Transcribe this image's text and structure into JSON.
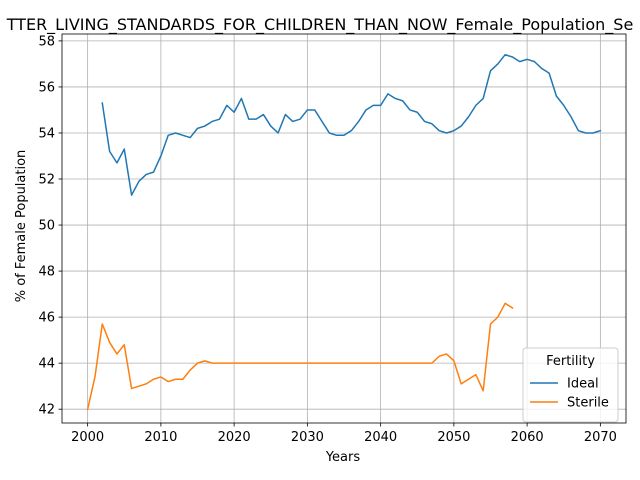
{
  "chart_data": {
    "type": "line",
    "title": "TTER_LIVING_STANDARDS_FOR_CHILDREN_THAN_NOW_Female_Population_Se",
    "xlabel": "Years",
    "ylabel": "% of Female Population",
    "xlim": [
      1996.5,
      2073.5
    ],
    "ylim": [
      41.4,
      58.3
    ],
    "xticks": [
      2000,
      2010,
      2020,
      2030,
      2040,
      2050,
      2060,
      2070
    ],
    "yticks": [
      42,
      44,
      46,
      48,
      50,
      52,
      54,
      56,
      58
    ],
    "grid": true,
    "legend": {
      "title": "Fertility",
      "position": "bottom-right"
    },
    "series": [
      {
        "name": "Ideal",
        "color": "#1f77b4",
        "x": [
          2002,
          2003,
          2004,
          2005,
          2006,
          2007,
          2008,
          2009,
          2010,
          2011,
          2012,
          2013,
          2014,
          2015,
          2016,
          2017,
          2018,
          2019,
          2020,
          2021,
          2022,
          2023,
          2024,
          2025,
          2026,
          2027,
          2028,
          2029,
          2030,
          2031,
          2032,
          2033,
          2034,
          2035,
          2036,
          2037,
          2038,
          2039,
          2040,
          2041,
          2042,
          2043,
          2044,
          2045,
          2046,
          2047,
          2048,
          2049,
          2050,
          2051,
          2052,
          2053,
          2054,
          2055,
          2056,
          2057,
          2058,
          2059,
          2060,
          2061,
          2062,
          2063,
          2064,
          2065,
          2066,
          2067,
          2068,
          2069,
          2070
        ],
        "y": [
          55.3,
          53.2,
          52.7,
          53.3,
          51.3,
          51.9,
          52.2,
          52.3,
          53.0,
          53.9,
          54.0,
          53.9,
          53.8,
          54.2,
          54.3,
          54.5,
          54.6,
          55.2,
          54.9,
          55.5,
          54.6,
          54.6,
          54.8,
          54.3,
          54.0,
          54.8,
          54.5,
          54.6,
          55.0,
          55.0,
          54.5,
          54.0,
          53.9,
          53.9,
          54.1,
          54.5,
          55.0,
          55.2,
          55.2,
          55.7,
          55.5,
          55.4,
          55.0,
          54.9,
          54.5,
          54.4,
          54.1,
          54.0,
          54.1,
          54.3,
          54.7,
          55.2,
          55.5,
          56.7,
          57.0,
          57.4,
          57.3,
          57.1,
          57.2,
          57.1,
          56.8,
          56.6,
          55.6,
          55.2,
          54.7,
          54.1,
          54.0,
          54.0,
          54.1
        ]
      },
      {
        "name": "Sterile",
        "color": "#ff7f0e",
        "x": [
          2000,
          2001,
          2002,
          2003,
          2004,
          2005,
          2006,
          2007,
          2008,
          2009,
          2010,
          2011,
          2012,
          2013,
          2014,
          2015,
          2016,
          2017,
          2018,
          2019,
          2020,
          2021,
          2022,
          2023,
          2024,
          2025,
          2026,
          2027,
          2028,
          2029,
          2030,
          2031,
          2032,
          2033,
          2034,
          2035,
          2036,
          2037,
          2038,
          2039,
          2040,
          2041,
          2042,
          2043,
          2044,
          2045,
          2046,
          2047,
          2048,
          2049,
          2050,
          2051,
          2052,
          2053,
          2054,
          2055,
          2056,
          2057,
          2058
        ],
        "y": [
          42.0,
          43.4,
          45.7,
          44.9,
          44.4,
          44.8,
          42.9,
          43.0,
          43.1,
          43.3,
          43.4,
          43.2,
          43.3,
          43.3,
          43.7,
          44.0,
          44.1,
          44.0,
          44.0,
          44.0,
          44.0,
          44.0,
          44.0,
          44.0,
          44.0,
          44.0,
          44.0,
          44.0,
          44.0,
          44.0,
          44.0,
          44.0,
          44.0,
          44.0,
          44.0,
          44.0,
          44.0,
          44.0,
          44.0,
          44.0,
          44.0,
          44.0,
          44.0,
          44.0,
          44.0,
          44.0,
          44.0,
          44.0,
          44.3,
          44.4,
          44.1,
          43.1,
          43.3,
          43.5,
          42.8,
          45.7,
          46.0,
          46.6,
          46.4
        ]
      }
    ]
  }
}
